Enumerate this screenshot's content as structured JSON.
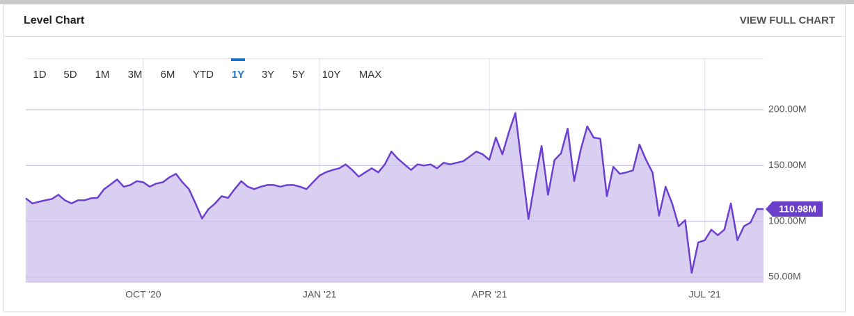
{
  "header": {
    "title": "Level Chart",
    "link": "VIEW FULL CHART"
  },
  "ranges": [
    "1D",
    "5D",
    "1M",
    "3M",
    "6M",
    "YTD",
    "1Y",
    "3Y",
    "5Y",
    "10Y",
    "MAX"
  ],
  "selected_range": "1Y",
  "chart_data": {
    "type": "area",
    "color": "#6d3fd0",
    "fill": "#d9cff1",
    "grid": true,
    "ylim": [
      45,
      246
    ],
    "yticks": [
      {
        "value": 50,
        "label": "50.00M"
      },
      {
        "value": 100,
        "label": "100.00M"
      },
      {
        "value": 150,
        "label": "150.00M"
      },
      {
        "value": 200,
        "label": "200.00M"
      }
    ],
    "last_label": "110.98M",
    "categories": [
      null,
      null,
      null,
      null,
      null,
      null,
      null,
      null,
      null,
      null,
      null,
      null,
      null,
      null,
      null,
      null,
      null,
      null,
      "OCT '20",
      null,
      null,
      null,
      null,
      null,
      null,
      null,
      null,
      null,
      null,
      null,
      null,
      null,
      null,
      null,
      null,
      null,
      null,
      null,
      null,
      null,
      null,
      null,
      null,
      null,
      null,
      "JAN '21",
      null,
      null,
      null,
      null,
      null,
      null,
      null,
      null,
      null,
      null,
      null,
      null,
      null,
      null,
      null,
      null,
      null,
      null,
      null,
      null,
      null,
      null,
      null,
      null,
      null,
      "APR '21",
      null,
      null,
      null,
      null,
      null,
      null,
      null,
      null,
      null,
      null,
      null,
      null,
      null,
      null,
      null,
      null,
      null,
      null,
      null,
      null,
      null,
      null,
      null,
      null,
      null,
      null,
      null,
      null,
      null,
      null,
      null,
      null,
      "JUL '21",
      null,
      null,
      null,
      null,
      null,
      null,
      null,
      null,
      null
    ],
    "values": [
      120.6,
      116,
      117.5,
      118.8,
      120,
      123.8,
      118.8,
      116,
      118.8,
      118.8,
      120.6,
      121,
      128.8,
      133,
      137.5,
      131,
      132.5,
      136,
      135,
      131,
      133.8,
      135,
      139.4,
      142.5,
      135,
      128.8,
      116,
      102.5,
      111,
      116,
      122.5,
      121,
      128.8,
      136,
      131,
      128.8,
      131,
      132.5,
      132.5,
      131,
      132.5,
      132.5,
      131,
      128.8,
      135,
      141,
      144,
      146,
      147.5,
      151,
      146,
      140,
      143.8,
      147.5,
      143.8,
      151,
      162.5,
      156,
      151,
      146,
      151,
      150,
      151,
      147.5,
      152.5,
      151,
      152.5,
      153.8,
      158,
      162.5,
      160,
      155,
      175,
      160,
      180,
      197,
      148.8,
      102,
      136.2,
      167.5,
      123.8,
      155,
      161,
      183,
      136,
      164,
      185,
      175,
      174,
      122.5,
      148.8,
      142.5,
      143.8,
      145.6,
      168.8,
      155,
      143.8,
      105,
      131,
      116,
      95.6,
      101,
      53.8,
      81,
      83,
      92.5,
      87.5,
      92.5,
      116,
      83,
      95.6,
      98.8,
      111,
      110.98
    ]
  }
}
